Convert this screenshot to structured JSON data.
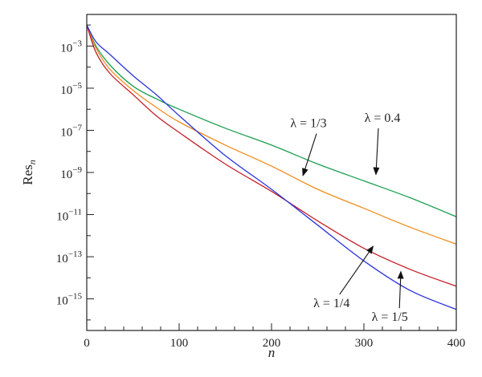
{
  "chart_data": {
    "type": "line",
    "title": "",
    "xlabel": "n",
    "ylabel": "Res",
    "ylabel_subscript": "n",
    "xlim": [
      0,
      400
    ],
    "ylim_log10": [
      -16.5,
      -1.5
    ],
    "yscale": "log",
    "grid": false,
    "x_ticks": [
      0,
      100,
      200,
      300,
      400
    ],
    "x_tick_labels": [
      "0",
      "100",
      "200",
      "300",
      "400"
    ],
    "y_ticks_exp": [
      -3,
      -5,
      -7,
      -9,
      -11,
      -13,
      -15
    ],
    "y_tick_base": "10",
    "series": [
      {
        "name": "λ = 0.4",
        "color": "#1a9e50",
        "x": [
          0,
          10,
          25,
          50,
          75,
          100,
          150,
          200,
          250,
          300,
          350,
          400
        ],
        "log10_y": [
          -2.0,
          -3.0,
          -3.9,
          -4.9,
          -5.5,
          -6.0,
          -6.9,
          -7.7,
          -8.6,
          -9.4,
          -10.2,
          -11.1
        ]
      },
      {
        "name": "λ = 1/3",
        "color": "#f08c1e",
        "x": [
          0,
          10,
          25,
          50,
          75,
          100,
          150,
          200,
          250,
          300,
          350,
          400
        ],
        "log10_y": [
          -2.0,
          -3.1,
          -4.1,
          -5.1,
          -5.9,
          -6.6,
          -7.7,
          -8.7,
          -9.8,
          -10.7,
          -11.6,
          -12.4
        ]
      },
      {
        "name": "λ = 1/4",
        "color": "#c41e28",
        "x": [
          0,
          10,
          25,
          50,
          75,
          100,
          150,
          200,
          250,
          300,
          350,
          400
        ],
        "log10_y": [
          -2.0,
          -3.3,
          -4.3,
          -5.3,
          -6.3,
          -7.1,
          -8.6,
          -9.9,
          -11.3,
          -12.6,
          -13.6,
          -14.4
        ]
      },
      {
        "name": "λ = 1/5",
        "color": "#2a34d8",
        "x": [
          0,
          10,
          25,
          50,
          75,
          100,
          150,
          200,
          250,
          300,
          350,
          400
        ],
        "log10_y": [
          -2.0,
          -2.8,
          -3.4,
          -4.4,
          -5.3,
          -6.3,
          -8.2,
          -9.8,
          -11.5,
          -13.2,
          -14.6,
          -15.5
        ]
      }
    ],
    "annotations": [
      {
        "text": "λ = 1/3",
        "series": "λ = 1/3",
        "x_text": 240,
        "log10_text": -6.85,
        "x_arrow": 234,
        "log10_arrow": -9.15,
        "anchor": "middle"
      },
      {
        "text": "λ = 0.4",
        "series": "λ = 0.4",
        "x_text": 320,
        "log10_text": -6.6,
        "x_arrow": 313,
        "log10_arrow": -9.1,
        "anchor": "middle"
      },
      {
        "text": "λ = 1/4",
        "series": "λ = 1/4",
        "x_text": 265,
        "log10_text": -15.4,
        "x_arrow": 310,
        "log10_arrow": -12.5,
        "anchor": "middle"
      },
      {
        "text": "λ = 1/5",
        "series": "λ = 1/5",
        "x_text": 328,
        "log10_text": -16.05,
        "x_arrow": 340,
        "log10_arrow": -13.7,
        "anchor": "middle"
      }
    ]
  }
}
